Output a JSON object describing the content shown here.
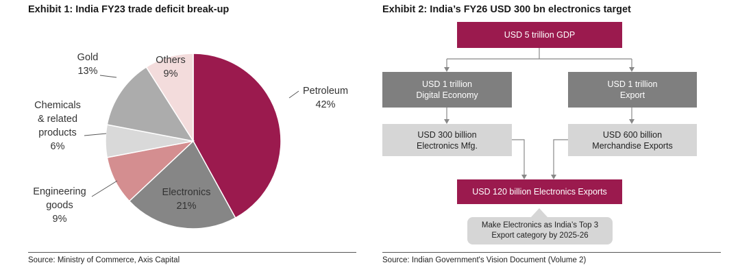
{
  "exhibit1": {
    "title": "Exhibit 1: India FY23 trade deficit break-up",
    "source": "Source: Ministry of Commerce, Axis Capital"
  },
  "exhibit2": {
    "title": "Exhibit 2: India’s FY26 USD 300 bn electronics target",
    "source": "Source: Indian Government's Vision Document (Volume 2)",
    "boxes": {
      "gdp": [
        "USD 5 trillion GDP"
      ],
      "digital": [
        "USD 1 trillion",
        "Digital Economy"
      ],
      "export": [
        "USD 1 trillion",
        "Export"
      ],
      "mfg": [
        "USD 300 billion",
        "Electronics Mfg."
      ],
      "merch": [
        "USD 600 billion",
        "Merchandise Exports"
      ],
      "elec_exports": [
        "USD 120 billion Electronics Exports"
      ]
    },
    "callout": [
      "Make Electronics as India’s Top 3",
      "Export category by 2025-26"
    ]
  },
  "chart_data": {
    "type": "pie",
    "title": "Exhibit 1: India FY23 trade deficit break-up",
    "slices": [
      {
        "name": "Petroleum",
        "label_lines": [
          "Petroleum",
          "42%"
        ],
        "value": 42,
        "color": "#9b1a4e"
      },
      {
        "name": "Electronics",
        "label_lines": [
          "Electronics",
          "21%"
        ],
        "value": 21,
        "color": "#868686"
      },
      {
        "name": "Engineering goods",
        "label_lines": [
          "Engineering",
          "goods",
          "9%"
        ],
        "value": 9,
        "color": "#d48e90"
      },
      {
        "name": "Chemicals & related products",
        "label_lines": [
          "Chemicals",
          "& related",
          "products",
          "6%"
        ],
        "value": 6,
        "color": "#d9d9d9"
      },
      {
        "name": "Gold",
        "label_lines": [
          "Gold",
          "13%"
        ],
        "value": 13,
        "color": "#acacac"
      },
      {
        "name": "Others",
        "label_lines": [
          "Others",
          "9%"
        ],
        "value": 9,
        "color": "#f3dcdc"
      }
    ],
    "start": "12 o'clock",
    "direction": "clockwise"
  },
  "colors": {
    "maroon": "#9b1a4e",
    "dark_grey": "#7f7f7f",
    "light_grey": "#d6d6d6",
    "connector": "#888888"
  }
}
